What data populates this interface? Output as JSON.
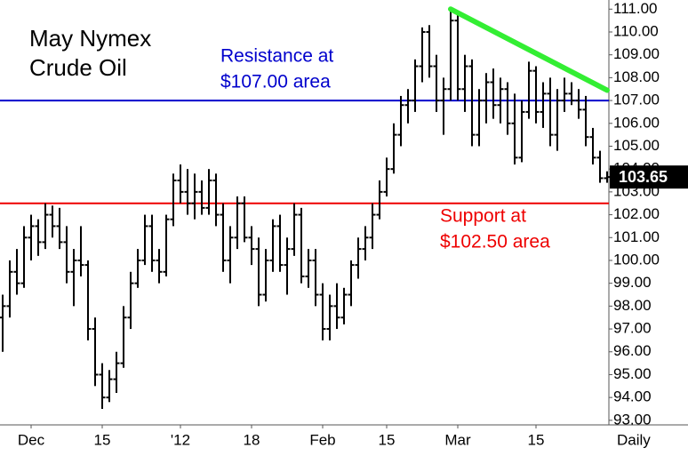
{
  "chart_data": {
    "type": "ohlc",
    "title": [
      "May Nymex",
      "Crude Oil"
    ],
    "x_unit": "Daily",
    "categories": [
      null,
      null,
      null,
      null,
      "Dec",
      null,
      null,
      null,
      null,
      null,
      null,
      null,
      null,
      null,
      "15",
      null,
      null,
      null,
      null,
      null,
      null,
      null,
      null,
      null,
      null,
      "'12",
      null,
      null,
      null,
      null,
      null,
      null,
      null,
      null,
      null,
      "18",
      null,
      null,
      null,
      null,
      null,
      null,
      null,
      null,
      null,
      "Feb",
      null,
      null,
      null,
      null,
      null,
      null,
      null,
      null,
      "15",
      null,
      null,
      null,
      null,
      null,
      null,
      null,
      null,
      null,
      "Mar",
      null,
      null,
      null,
      null,
      null,
      null,
      null,
      null,
      null,
      null,
      "15",
      null,
      null,
      null,
      null,
      null,
      null,
      null,
      null,
      null,
      null
    ],
    "open": [
      97.5,
      98,
      99.5,
      99,
      101,
      101.5,
      100.8,
      102,
      101.5,
      100.8,
      99.5,
      100,
      99.8,
      97,
      95,
      94,
      94.8,
      95.5,
      97.5,
      99,
      100,
      101.5,
      100,
      99.5,
      101.8,
      103.5,
      103,
      102.5,
      103,
      102.3,
      103.5,
      102,
      100,
      101,
      102.5,
      101,
      100.5,
      98.5,
      100,
      101.5,
      99.8,
      100.5,
      102,
      99.3,
      100,
      98.5,
      97,
      98,
      97.5,
      98.5,
      99.8,
      100.5,
      101,
      102,
      103,
      104,
      105.5,
      106.8,
      107,
      108.5,
      110,
      108.5,
      107,
      107.5,
      110.5,
      107.5,
      108.5,
      105.5,
      107,
      107.8,
      106.8,
      107.5,
      106,
      104.5,
      106.5,
      108.3,
      106.5,
      107.3,
      105.5,
      107,
      107.3,
      107,
      106.6,
      105.4,
      104.5,
      103.6
    ],
    "high": [
      98.5,
      100,
      100.5,
      101.5,
      102,
      101.8,
      102.5,
      102.4,
      102.3,
      101.5,
      100.5,
      101.5,
      100,
      97.5,
      95.5,
      95.2,
      96,
      98,
      99.5,
      100.5,
      102,
      102,
      100.5,
      102,
      103.8,
      104.2,
      104,
      103.8,
      103.5,
      104,
      103.8,
      102.5,
      101.5,
      102.8,
      102.8,
      101.5,
      101,
      100.5,
      101.8,
      102,
      101,
      102.5,
      102.3,
      100.5,
      100.5,
      99,
      98.5,
      99,
      98.8,
      100,
      101,
      101.5,
      102.5,
      103.5,
      104.5,
      106,
      107.2,
      107.5,
      108.8,
      110.2,
      110.3,
      109,
      108,
      111,
      110.8,
      109,
      108.8,
      107.5,
      108.2,
      108.4,
      108,
      107.8,
      107.3,
      107,
      108.7,
      108.5,
      107.8,
      108,
      107.5,
      108,
      107.8,
      107.5,
      107.2,
      105.8,
      104.8,
      103.9
    ],
    "low": [
      96,
      97.5,
      98.5,
      98.8,
      100,
      100.2,
      100.5,
      101,
      100.5,
      99,
      98,
      99.3,
      96.5,
      94.5,
      93.5,
      93.8,
      94.2,
      95.3,
      97,
      98.8,
      99.8,
      99.5,
      99,
      99.3,
      101.5,
      102.5,
      102,
      101.8,
      102,
      102,
      101.5,
      99.5,
      99,
      100.5,
      100.8,
      99.8,
      98,
      98.2,
      99.5,
      99.5,
      98.5,
      100.2,
      99,
      98.8,
      98,
      96.5,
      96.5,
      97,
      97.2,
      98,
      99.2,
      100,
      100.5,
      101.8,
      102.8,
      103.8,
      105,
      106,
      106.5,
      107.8,
      108,
      106.5,
      105.5,
      107,
      107,
      106.5,
      105,
      105,
      106,
      106.2,
      106,
      105.5,
      104.2,
      104.3,
      106.2,
      106,
      105.8,
      105,
      104.8,
      106.5,
      106.8,
      106.2,
      105,
      104.2,
      103.4,
      103.4
    ],
    "close": [
      98,
      99.5,
      99,
      101,
      101.5,
      100.8,
      102,
      101.5,
      100.8,
      99.5,
      100,
      99.8,
      97,
      95,
      94,
      94.8,
      95.5,
      97.5,
      99,
      100,
      101.5,
      100,
      99.5,
      101.8,
      103.5,
      103,
      102.5,
      103,
      102.3,
      103.5,
      102,
      100,
      101,
      102.5,
      101,
      100.5,
      98.5,
      100,
      101.5,
      99.8,
      100.5,
      102,
      99.3,
      100,
      98.5,
      97,
      98,
      97.5,
      98.5,
      99.8,
      100.5,
      101,
      102,
      103,
      104,
      105.5,
      106.8,
      107,
      108.5,
      110,
      108.5,
      107,
      107.5,
      110.5,
      107.5,
      108.5,
      105.5,
      107,
      107.8,
      106.8,
      107.5,
      106,
      104.5,
      106.5,
      108.3,
      106.5,
      107.3,
      105.5,
      107,
      107.3,
      107,
      106.6,
      105.4,
      104.5,
      103.6,
      103.65
    ],
    "color": "#000000",
    "last_price": {
      "value": 103.65,
      "label": "103.65"
    },
    "levels": [
      {
        "value": 107,
        "color": "#0000cc",
        "lines": [
          "Resistance at",
          "$107.00 area"
        ]
      },
      {
        "value": 102.5,
        "color": "#ee0000",
        "lines": [
          "Support at",
          "$102.50 area"
        ]
      }
    ],
    "trendline": {
      "x": [
        63,
        85
      ],
      "values": [
        111,
        107.45
      ],
      "color": "#33ee33"
    },
    "ylim": [
      92.8,
      111.4
    ],
    "yticks": [
      {
        "value": 93,
        "label": "93.00"
      },
      {
        "value": 94,
        "label": "94.00"
      },
      {
        "value": 95,
        "label": "95.00"
      },
      {
        "value": 96,
        "label": "96.00"
      },
      {
        "value": 97,
        "label": "97.00"
      },
      {
        "value": 98,
        "label": "98.00"
      },
      {
        "value": 99,
        "label": "99.00"
      },
      {
        "value": 100,
        "label": "100.00"
      },
      {
        "value": 101,
        "label": "101.00"
      },
      {
        "value": 102,
        "label": "102.00"
      },
      {
        "value": 103,
        "label": "103.00"
      },
      {
        "value": 104,
        "label": "104.00"
      },
      {
        "value": 105,
        "label": "105.00"
      },
      {
        "value": 106,
        "label": "106.00"
      },
      {
        "value": 107,
        "label": "107.00"
      },
      {
        "value": 108,
        "label": "108.00"
      },
      {
        "value": 109,
        "label": "109.00"
      },
      {
        "value": 110,
        "label": "110.00"
      },
      {
        "value": 111,
        "label": "111.00"
      }
    ]
  }
}
